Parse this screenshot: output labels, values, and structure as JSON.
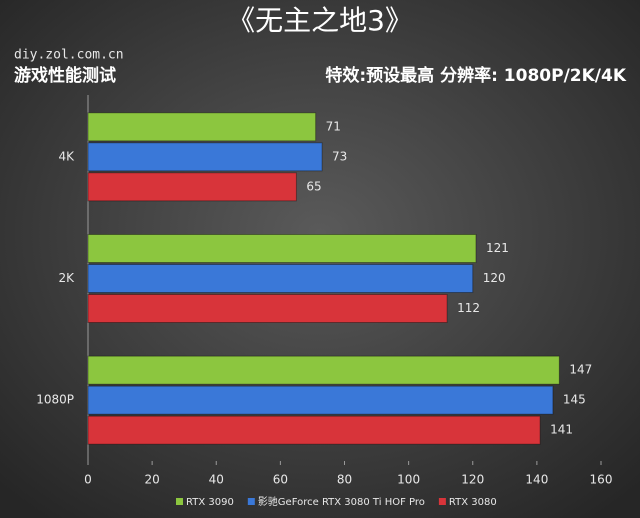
{
  "chart_data": {
    "type": "barh",
    "title": "《无主之地3》",
    "source": "diy.zol.com.cn",
    "subtitle": "游戏性能测试",
    "annotation": "特效:预设最高  分辨率: 1080P/2K/4K",
    "categories": [
      "4K",
      "2K",
      "1080P"
    ],
    "series": [
      {
        "name": "RTX 3090",
        "color": "#8cc63f",
        "values": [
          71,
          121,
          147
        ]
      },
      {
        "name": "影驰GeForce RTX 3080 Ti HOF Pro",
        "color": "#3a78d8",
        "values": [
          73,
          120,
          145
        ]
      },
      {
        "name": "RTX 3080",
        "color": "#d8343a",
        "values": [
          65,
          112,
          141
        ]
      }
    ],
    "xlim": [
      0,
      160
    ],
    "xticks": [
      0,
      20,
      40,
      60,
      80,
      100,
      120,
      140,
      160
    ],
    "grid": false,
    "legend": "bottom"
  }
}
